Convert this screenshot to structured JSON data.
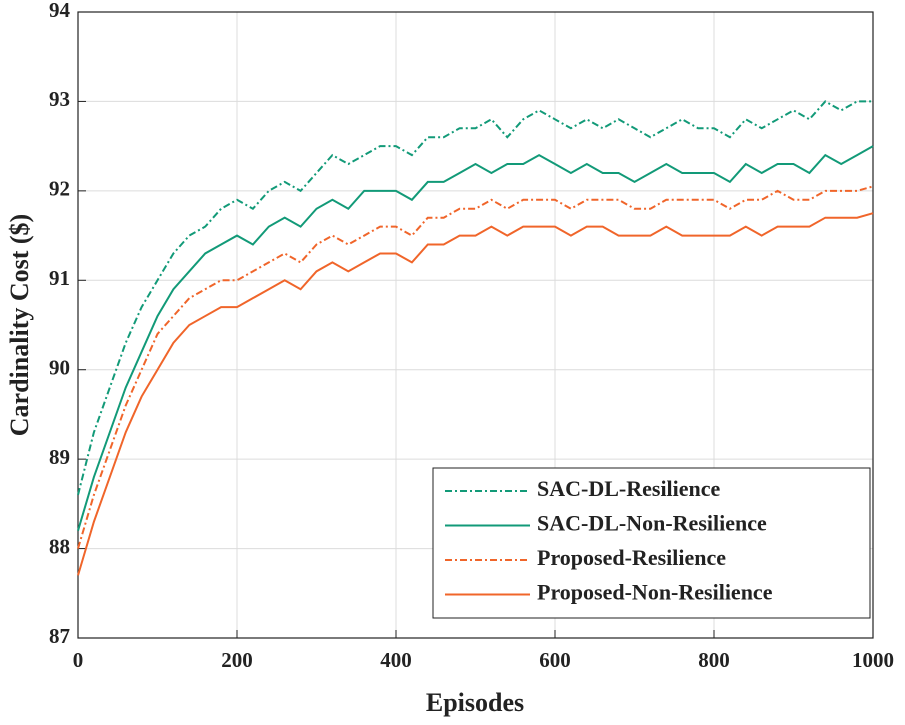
{
  "chart_data": {
    "type": "line",
    "xlabel": "Episodes",
    "ylabel": "Cardinality Cost ($)",
    "x": [
      0,
      20,
      40,
      60,
      80,
      100,
      120,
      140,
      160,
      180,
      200,
      220,
      240,
      260,
      280,
      300,
      320,
      340,
      360,
      380,
      400,
      420,
      440,
      460,
      480,
      500,
      520,
      540,
      560,
      580,
      600,
      620,
      640,
      660,
      680,
      700,
      720,
      740,
      760,
      780,
      800,
      820,
      840,
      860,
      880,
      900,
      920,
      940,
      960,
      980,
      1000
    ],
    "series": [
      {
        "name": "SAC-DL-Resilience",
        "color": "#129a78",
        "linestyle": "dashdot",
        "values": [
          88.6,
          89.3,
          89.8,
          90.3,
          90.7,
          91.0,
          91.3,
          91.5,
          91.6,
          91.8,
          91.9,
          91.8,
          92.0,
          92.1,
          92.0,
          92.2,
          92.4,
          92.3,
          92.4,
          92.5,
          92.5,
          92.4,
          92.6,
          92.6,
          92.7,
          92.7,
          92.8,
          92.6,
          92.8,
          92.9,
          92.8,
          92.7,
          92.8,
          92.7,
          92.8,
          92.7,
          92.6,
          92.7,
          92.8,
          92.7,
          92.7,
          92.6,
          92.8,
          92.7,
          92.8,
          92.9,
          92.8,
          93.0,
          92.9,
          93.0,
          93.0
        ]
      },
      {
        "name": "SAC-DL-Non-Resilience",
        "color": "#129a78",
        "linestyle": "solid",
        "values": [
          88.2,
          88.8,
          89.3,
          89.8,
          90.2,
          90.6,
          90.9,
          91.1,
          91.3,
          91.4,
          91.5,
          91.4,
          91.6,
          91.7,
          91.6,
          91.8,
          91.9,
          91.8,
          92.0,
          92.0,
          92.0,
          91.9,
          92.1,
          92.1,
          92.2,
          92.3,
          92.2,
          92.3,
          92.3,
          92.4,
          92.3,
          92.2,
          92.3,
          92.2,
          92.2,
          92.1,
          92.2,
          92.3,
          92.2,
          92.2,
          92.2,
          92.1,
          92.3,
          92.2,
          92.3,
          92.3,
          92.2,
          92.4,
          92.3,
          92.4,
          92.5
        ]
      },
      {
        "name": "Proposed-Resilience",
        "color": "#f0652a",
        "linestyle": "dashdot",
        "values": [
          88.0,
          88.6,
          89.1,
          89.6,
          90.0,
          90.4,
          90.6,
          90.8,
          90.9,
          91.0,
          91.0,
          91.1,
          91.2,
          91.3,
          91.2,
          91.4,
          91.5,
          91.4,
          91.5,
          91.6,
          91.6,
          91.5,
          91.7,
          91.7,
          91.8,
          91.8,
          91.9,
          91.8,
          91.9,
          91.9,
          91.9,
          91.8,
          91.9,
          91.9,
          91.9,
          91.8,
          91.8,
          91.9,
          91.9,
          91.9,
          91.9,
          91.8,
          91.9,
          91.9,
          92.0,
          91.9,
          91.9,
          92.0,
          92.0,
          92.0,
          92.05
        ]
      },
      {
        "name": "Proposed-Non-Resilience",
        "color": "#f0652a",
        "linestyle": "solid",
        "values": [
          87.7,
          88.3,
          88.8,
          89.3,
          89.7,
          90.0,
          90.3,
          90.5,
          90.6,
          90.7,
          90.7,
          90.8,
          90.9,
          91.0,
          90.9,
          91.1,
          91.2,
          91.1,
          91.2,
          91.3,
          91.3,
          91.2,
          91.4,
          91.4,
          91.5,
          91.5,
          91.6,
          91.5,
          91.6,
          91.6,
          91.6,
          91.5,
          91.6,
          91.6,
          91.5,
          91.5,
          91.5,
          91.6,
          91.5,
          91.5,
          91.5,
          91.5,
          91.6,
          91.5,
          91.6,
          91.6,
          91.6,
          91.7,
          91.7,
          91.7,
          91.75
        ]
      }
    ],
    "xlim": [
      0,
      1000
    ],
    "xticks": [
      0,
      200,
      400,
      600,
      800,
      1000
    ],
    "ylim": [
      87,
      94
    ],
    "yticks": [
      87,
      88,
      89,
      90,
      91,
      92,
      93,
      94
    ],
    "grid": true,
    "legend": "lower right"
  }
}
